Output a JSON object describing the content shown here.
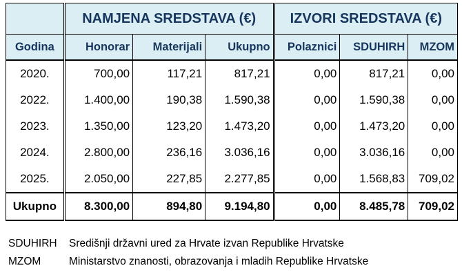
{
  "table": {
    "groups": [
      "NAMJENA SREDSTAVA (€)",
      "IZVORI SREDSTAVA (€)"
    ],
    "columns": [
      "Godina",
      "Honorar",
      "Materijali",
      "Ukupno",
      "Polaznici",
      "SDUHIRH",
      "MZOM"
    ],
    "rows": [
      [
        "2020.",
        "700,00",
        "117,21",
        "817,21",
        "0,00",
        "817,21",
        "0,00"
      ],
      [
        "2022.",
        "1.400,00",
        "190,38",
        "1.590,38",
        "0,00",
        "1.590,38",
        "0,00"
      ],
      [
        "2023.",
        "1.350,00",
        "123,20",
        "1.473,20",
        "0,00",
        "1.473,20",
        "0,00"
      ],
      [
        "2024.",
        "2.800,00",
        "236,16",
        "3.036,16",
        "0,00",
        "3.036,16",
        "0,00"
      ],
      [
        "2025.",
        "2.050,00",
        "227,85",
        "2.277,85",
        "0,00",
        "1.568,83",
        "709,02"
      ]
    ],
    "total": [
      "Ukupno",
      "8.300,00",
      "894,80",
      "9.194,80",
      "0,00",
      "8.485,78",
      "709,02"
    ]
  },
  "legend": [
    {
      "abbr": "SDUHIRH",
      "text": "Središnji državni ured za Hrvate izvan Republike Hrvatske"
    },
    {
      "abbr": "MZOM",
      "text": "Ministarstvo znanosti, obrazovanja i mladih Republike Hrvatske"
    }
  ]
}
